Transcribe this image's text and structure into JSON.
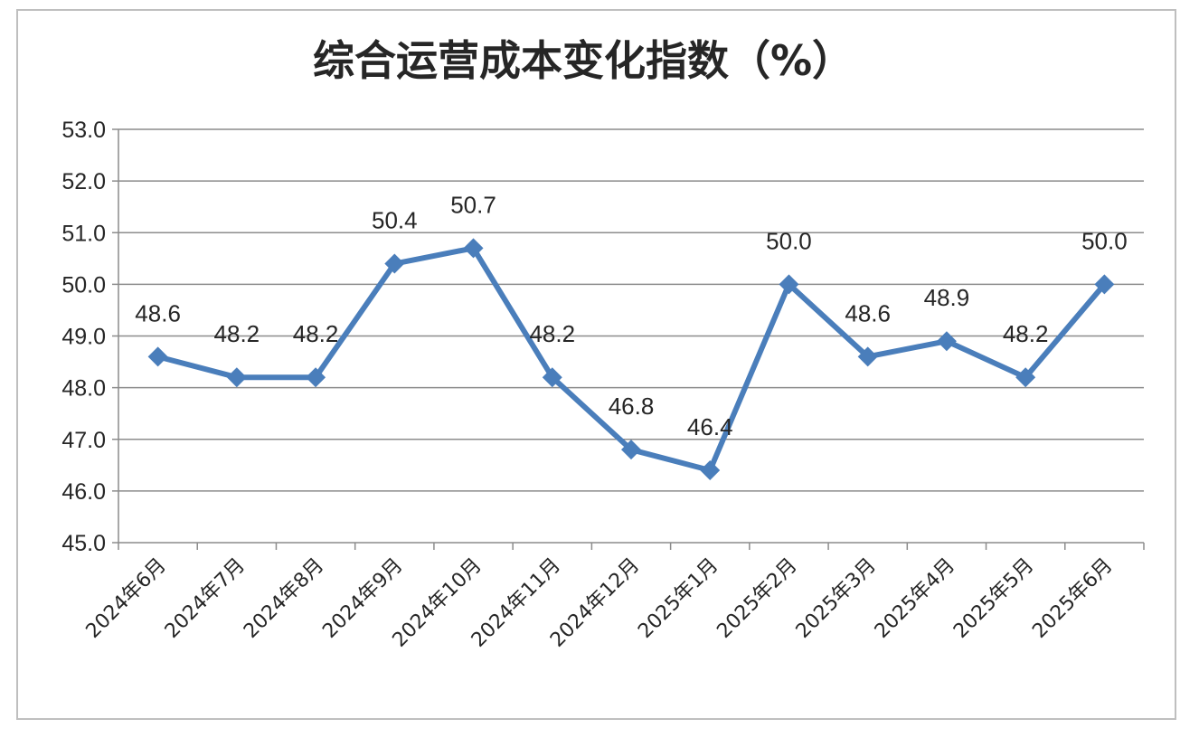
{
  "colors": {
    "series": "#4a7ebb",
    "grid": "#8c8c8c",
    "axis": "#8c8c8c",
    "text": "#262626",
    "border": "#bfbfbf"
  },
  "chart_data": {
    "type": "line",
    "title": "综合运营成本变化指数（%）",
    "categories": [
      "2024年6月",
      "2024年7月",
      "2024年8月",
      "2024年9月",
      "2024年10月",
      "2024年11月",
      "2024年12月",
      "2025年1月",
      "2025年2月",
      "2025年3月",
      "2025年4月",
      "2025年5月",
      "2025年6月"
    ],
    "values": [
      48.6,
      48.2,
      48.2,
      50.4,
      50.7,
      48.2,
      46.8,
      46.4,
      50.0,
      48.6,
      48.9,
      48.2,
      50.0
    ],
    "data_labels": [
      "48.6",
      "48.2",
      "48.2",
      "50.4",
      "50.7",
      "48.2",
      "46.8",
      "46.4",
      "50.0",
      "48.6",
      "48.9",
      "48.2",
      "50.0"
    ],
    "y_ticks": [
      "45.0",
      "46.0",
      "47.0",
      "48.0",
      "49.0",
      "50.0",
      "51.0",
      "52.0",
      "53.0"
    ],
    "ylim": [
      45,
      53
    ],
    "marker": "diamond",
    "grid": true,
    "legend": "none"
  }
}
